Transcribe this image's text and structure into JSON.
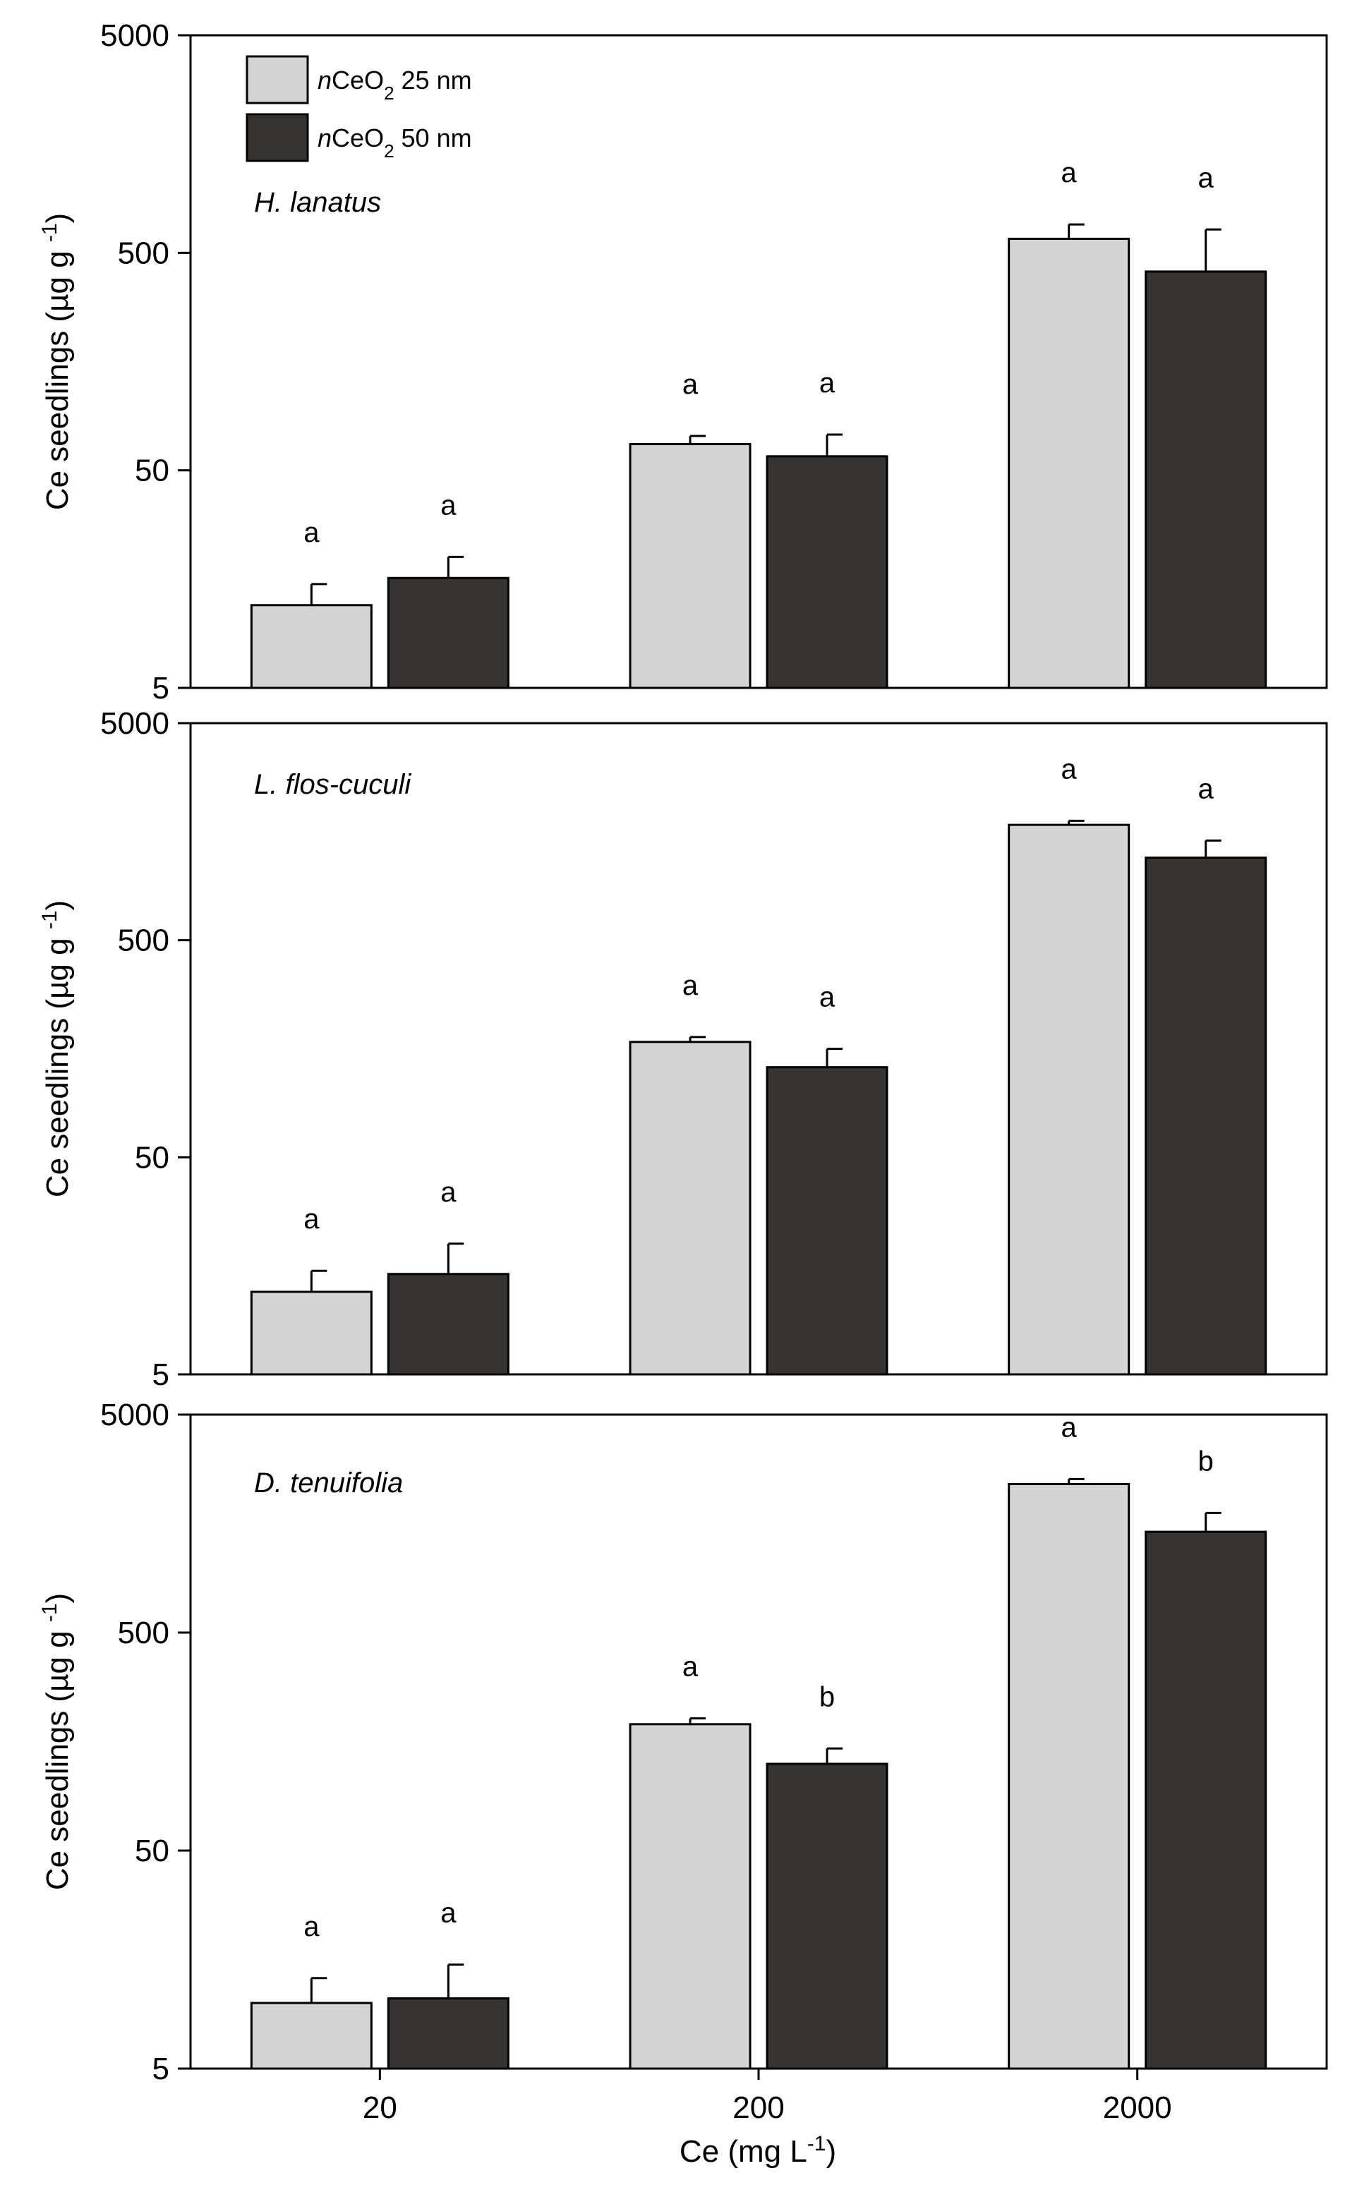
{
  "chart_data": {
    "type": "bar",
    "y_scale": "log",
    "ylim": [
      5,
      5000
    ],
    "y_ticks": [
      "5",
      "50",
      "500",
      "5000"
    ],
    "ylabel": "Ce seedlings (µg g⁻¹)",
    "xlabel": "Ce (mg L⁻¹)",
    "categories": [
      "20",
      "200",
      "2000"
    ],
    "legend": {
      "position": "top-left",
      "entries": [
        {
          "italic": "n",
          "main": "CeO",
          "sub": "2",
          "tail": " 25 nm",
          "color": "#d4d4d4"
        },
        {
          "italic": "n",
          "main": "CeO",
          "sub": "2",
          "tail": " 50 nm",
          "color": "#373331"
        }
      ]
    },
    "series_colors": [
      "#d4d4d4",
      "#373331"
    ],
    "panels": [
      {
        "species": "H. lanatus",
        "series": [
          {
            "values": [
              12,
              66,
              580
            ],
            "errors": [
              3,
              6,
              95
            ],
            "letters": [
              "a",
              "a",
              "a"
            ]
          },
          {
            "values": [
              16,
              58,
              410
            ],
            "errors": [
              4,
              15,
              230
            ],
            "letters": [
              "a",
              "a",
              "a"
            ]
          }
        ]
      },
      {
        "species": "L. flos-cuculi",
        "series": [
          {
            "values": [
              12,
              170,
              1700
            ],
            "errors": [
              3,
              9,
              75
            ],
            "letters": [
              "a",
              "a",
              "a"
            ]
          },
          {
            "values": [
              14.5,
              130,
              1200
            ],
            "errors": [
              5.5,
              28,
              240
            ],
            "letters": [
              "a",
              "a",
              "a"
            ]
          }
        ]
      },
      {
        "species": "D. tenuifolia",
        "series": [
          {
            "values": [
              10,
              190,
              2400
            ],
            "errors": [
              3,
              12,
              130
            ],
            "letters": [
              "a",
              "a",
              "a"
            ]
          },
          {
            "values": [
              10.5,
              125,
              1450
            ],
            "errors": [
              4.5,
              22,
              320
            ],
            "letters": [
              "a",
              "b",
              "b"
            ]
          }
        ]
      }
    ]
  }
}
